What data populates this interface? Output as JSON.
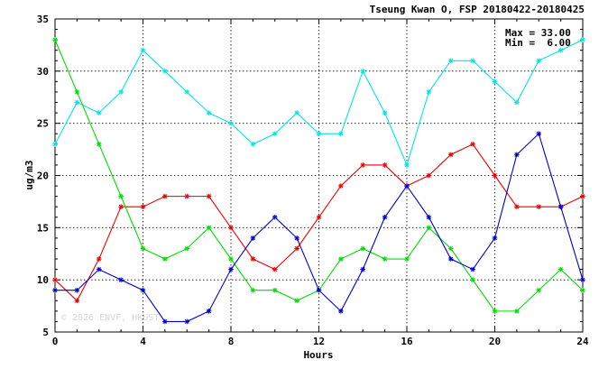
{
  "chart_data": {
    "type": "line",
    "title": "Tseung Kwan O, FSP 20180422-20180425",
    "xlabel": "Hours",
    "ylabel": "ug/m3",
    "xlim": [
      0,
      24
    ],
    "ylim": [
      5,
      35
    ],
    "x_ticks": [
      0,
      4,
      8,
      12,
      16,
      20,
      24
    ],
    "y_ticks": [
      5,
      10,
      15,
      20,
      25,
      30,
      35
    ],
    "grid": true,
    "x": [
      0,
      1,
      2,
      3,
      4,
      5,
      6,
      7,
      8,
      9,
      10,
      11,
      12,
      13,
      14,
      15,
      16,
      17,
      18,
      19,
      20,
      21,
      22,
      23,
      24
    ],
    "series": [
      {
        "color": "#00e5e5",
        "values": [
          23,
          27,
          26,
          28,
          32,
          30,
          28,
          26,
          25,
          23,
          24,
          26,
          24,
          24,
          30,
          26,
          21,
          28,
          31,
          31,
          29,
          27,
          31,
          32,
          33
        ]
      },
      {
        "color": "#ee0000",
        "values": [
          10,
          8,
          12,
          17,
          17,
          18,
          18,
          18,
          15,
          12,
          11,
          13,
          16,
          19,
          21,
          21,
          19,
          20,
          22,
          23,
          20,
          17,
          17,
          17,
          18
        ]
      },
      {
        "color": "#00dd00",
        "values": [
          33,
          28,
          23,
          18,
          13,
          12,
          13,
          15,
          12,
          9,
          9,
          8,
          9,
          12,
          13,
          12,
          12,
          15,
          13,
          10,
          7,
          7,
          9,
          11,
          9
        ]
      },
      {
        "color": "#0000cc",
        "values": [
          9,
          9,
          11,
          10,
          9,
          6,
          6,
          7,
          11,
          14,
          16,
          14,
          9,
          7,
          11,
          16,
          19,
          16,
          12,
          11,
          14,
          22,
          24,
          17,
          10
        ]
      }
    ],
    "annotations": {
      "max_label": "Max = 33.00",
      "min_label": "Min =  6.00"
    },
    "watermark": "© 2026  ENVF, HKUST"
  }
}
